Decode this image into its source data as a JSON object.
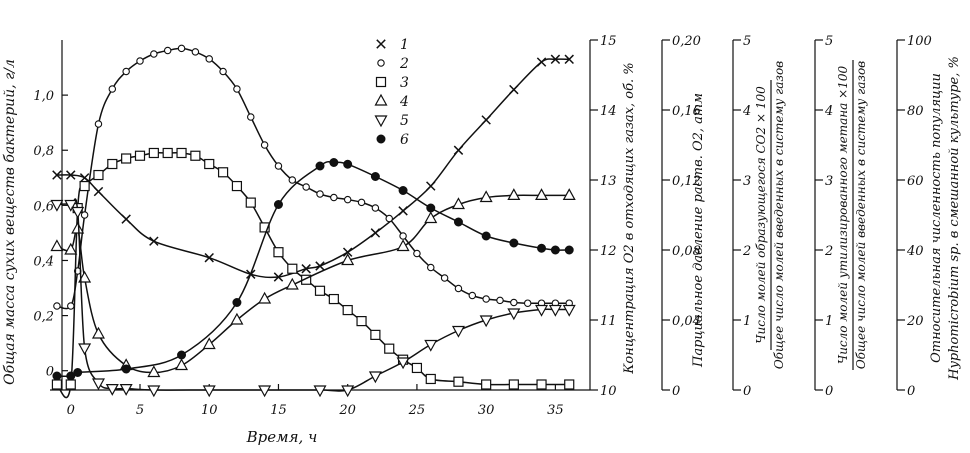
{
  "chart_data": {
    "type": "line",
    "title": "",
    "xlabel": "Время, ч",
    "x_ticks": [
      "0",
      "5",
      "10",
      "15",
      "20",
      "25",
      "30",
      "35"
    ],
    "xlim": [
      -1.5,
      37.5
    ],
    "axes": [
      {
        "id": "a1",
        "label": "Общая масса сухих веществ бактерий, г/л",
        "ticks": [
          "0",
          "0,2",
          "0,4",
          "0,6",
          "0,8",
          "1,0"
        ],
        "range": [
          -0.07,
          1.2
        ]
      },
      {
        "id": "a2",
        "label": "Концентрация O2 в отходящих газах, об. %",
        "ticks": [
          "10",
          "11",
          "12",
          "13",
          "14",
          "15"
        ],
        "range": [
          10,
          15
        ]
      },
      {
        "id": "a3",
        "label": "Парциальное давление раств. O2, атм",
        "ticks": [
          "0",
          "0,04",
          "0,08",
          "0,12",
          "0,16",
          "0,20"
        ],
        "range": [
          0,
          0.2
        ]
      },
      {
        "id": "a4",
        "label_top": "Число молей образующегося CO2 × 100",
        "label_bottom": "Общее число молей введенных в систему газов",
        "ticks": [
          "0",
          "1",
          "2",
          "3",
          "4",
          "5"
        ],
        "range": [
          0,
          5
        ]
      },
      {
        "id": "a5",
        "label_top": "Число молей утилизированного метана ×100",
        "label_bottom": "Общее число молей введенных в систему газов",
        "ticks": [
          "0",
          "1",
          "2",
          "3",
          "4",
          "5"
        ],
        "range": [
          0,
          5
        ]
      },
      {
        "id": "a6",
        "label_top": "Относительная численность популяции",
        "label_bottom": "Hyphomicrobium sp. в смешанной культуре, %",
        "ticks": [
          "0",
          "20",
          "40",
          "60",
          "80",
          "100"
        ],
        "range": [
          0,
          100
        ]
      }
    ],
    "legend_position": "top-center",
    "series": [
      {
        "name": "1",
        "marker": "x",
        "axis": "a1",
        "x": [
          -1,
          0,
          1,
          2,
          4,
          6,
          10,
          13,
          15,
          17,
          18,
          20,
          22,
          24,
          26,
          28,
          30,
          32,
          34,
          35,
          36
        ],
        "y": [
          0.71,
          0.71,
          0.7,
          0.65,
          0.55,
          0.47,
          0.41,
          0.35,
          0.34,
          0.37,
          0.38,
          0.43,
          0.5,
          0.58,
          0.67,
          0.8,
          0.91,
          1.02,
          1.12,
          1.13,
          1.13
        ]
      },
      {
        "name": "2",
        "marker": "circle-open",
        "axis": "a2",
        "x": [
          -1,
          0,
          0.5,
          1,
          2,
          3,
          4,
          5,
          6,
          7,
          8,
          9,
          10,
          11,
          12,
          13,
          14,
          15,
          16,
          17,
          18,
          19,
          20,
          21,
          22,
          23,
          24,
          25,
          26,
          27,
          28,
          29,
          30,
          31,
          32,
          33,
          34,
          35,
          36
        ],
        "y": [
          11.2,
          11.2,
          11.7,
          12.5,
          13.8,
          14.3,
          14.55,
          14.7,
          14.8,
          14.85,
          14.88,
          14.83,
          14.73,
          14.55,
          14.3,
          13.9,
          13.5,
          13.2,
          13.0,
          12.9,
          12.8,
          12.75,
          12.72,
          12.68,
          12.6,
          12.45,
          12.2,
          11.95,
          11.75,
          11.6,
          11.45,
          11.35,
          11.3,
          11.28,
          11.25,
          11.24,
          11.24,
          11.24,
          11.24
        ]
      },
      {
        "name": "3",
        "marker": "square-open",
        "axis": "a1",
        "x": [
          -1,
          0,
          0.5,
          1,
          2,
          3,
          4,
          5,
          6,
          7,
          8,
          9,
          10,
          11,
          12,
          13,
          14,
          15,
          16,
          17,
          18,
          19,
          20,
          21,
          22,
          23,
          24,
          25,
          26,
          28,
          30,
          32,
          34,
          36
        ],
        "y": [
          -0.05,
          -0.05,
          0.59,
          0.67,
          0.71,
          0.75,
          0.77,
          0.78,
          0.79,
          0.79,
          0.79,
          0.78,
          0.75,
          0.72,
          0.67,
          0.61,
          0.52,
          0.43,
          0.37,
          0.33,
          0.29,
          0.26,
          0.22,
          0.18,
          0.13,
          0.08,
          0.04,
          0.01,
          -0.03,
          -0.04,
          -0.05,
          -0.05,
          -0.05,
          -0.05
        ]
      },
      {
        "name": "4",
        "marker": "triangle-up-open",
        "axis": "a4",
        "x": [
          -1,
          0,
          0.5,
          1,
          2,
          4,
          6,
          8,
          10,
          12,
          14,
          16,
          20,
          24,
          26,
          28,
          30,
          32,
          34,
          36
        ],
        "y": [
          2.05,
          2.0,
          2.3,
          1.6,
          0.8,
          0.35,
          0.25,
          0.35,
          0.65,
          1.0,
          1.3,
          1.5,
          1.85,
          2.05,
          2.45,
          2.65,
          2.75,
          2.78,
          2.78,
          2.78
        ]
      },
      {
        "name": "5",
        "marker": "triangle-down-open",
        "axis": "a5",
        "x": [
          -1,
          0,
          0.5,
          1,
          2,
          3,
          4,
          6,
          10,
          14,
          18,
          20,
          22,
          24,
          26,
          28,
          30,
          32,
          34,
          35,
          36
        ],
        "y": [
          2.65,
          2.65,
          2.55,
          0.6,
          0.1,
          0.02,
          0.02,
          0.0,
          0.0,
          0.0,
          0.0,
          0.0,
          0.2,
          0.4,
          0.65,
          0.85,
          1.0,
          1.1,
          1.15,
          1.15,
          1.15
        ]
      },
      {
        "name": "6",
        "marker": "circle-filled",
        "axis": "a6",
        "x": [
          -1,
          0,
          0.5,
          4,
          8,
          12,
          15,
          18,
          19,
          20,
          22,
          24,
          26,
          28,
          30,
          32,
          34,
          35,
          36
        ],
        "y": [
          4,
          4,
          5,
          6,
          10,
          25,
          53,
          64,
          65,
          64.5,
          61,
          57,
          52,
          48,
          44,
          42,
          40.5,
          40,
          40
        ]
      }
    ],
    "legend": [
      {
        "label": "1",
        "marker": "x"
      },
      {
        "label": "2",
        "marker": "circle-open"
      },
      {
        "label": "3",
        "marker": "square-open"
      },
      {
        "label": "4",
        "marker": "triangle-up-open"
      },
      {
        "label": "5",
        "marker": "triangle-down-open"
      },
      {
        "label": "6",
        "marker": "circle-filled"
      }
    ]
  }
}
